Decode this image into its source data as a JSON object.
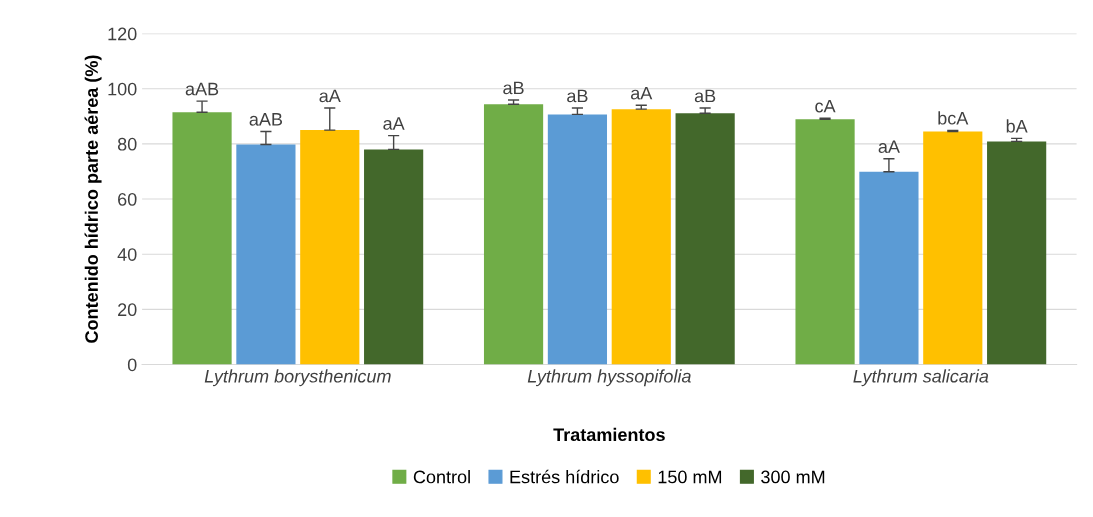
{
  "chart_data": {
    "type": "bar",
    "xlabel": "Tratamientos",
    "ylabel": "Contenido hídrico parte aérea (%)",
    "categories": [
      "Lythrum borysthenicum",
      "Lythrum hyssopifolia",
      "Lythrum salicaria"
    ],
    "series": [
      {
        "name": "Control",
        "color": "#70ad47",
        "values": [
          91.5,
          94.4,
          88.9
        ],
        "errors": [
          [
            91.5,
            95.5
          ],
          [
            94.4,
            95.9
          ],
          [
            88.9,
            89.3
          ]
        ],
        "value_labels": [
          "aAB",
          "aB",
          "cA"
        ]
      },
      {
        "name": "Estrés hídrico",
        "color": "#5b9bd5",
        "values": [
          79.8,
          90.7,
          69.9
        ],
        "errors": [
          [
            79.8,
            84.5
          ],
          [
            90.7,
            93.0
          ],
          [
            69.9,
            74.6
          ]
        ],
        "value_labels": [
          "aAB",
          "aB",
          "aA"
        ]
      },
      {
        "name": "150 mM",
        "color": "#ffc000",
        "values": [
          85.0,
          92.6,
          84.5
        ],
        "errors": [
          [
            85.0,
            93.0
          ],
          [
            92.6,
            94.0
          ],
          [
            84.5,
            84.9
          ]
        ],
        "value_labels": [
          "aA",
          "aA",
          "bcA"
        ]
      },
      {
        "name": "300 mM",
        "color": "#43682b",
        "values": [
          78.0,
          91.1,
          80.9
        ],
        "errors": [
          [
            78.0,
            83.0
          ],
          [
            91.1,
            93.0
          ],
          [
            80.9,
            82.0
          ]
        ],
        "value_labels": [
          "aA",
          "aB",
          "bA"
        ]
      }
    ],
    "ylim": [
      0,
      120
    ],
    "yticks": [
      0,
      20,
      40,
      60,
      80,
      100,
      120
    ],
    "grid": "y",
    "legend": "bottom"
  }
}
